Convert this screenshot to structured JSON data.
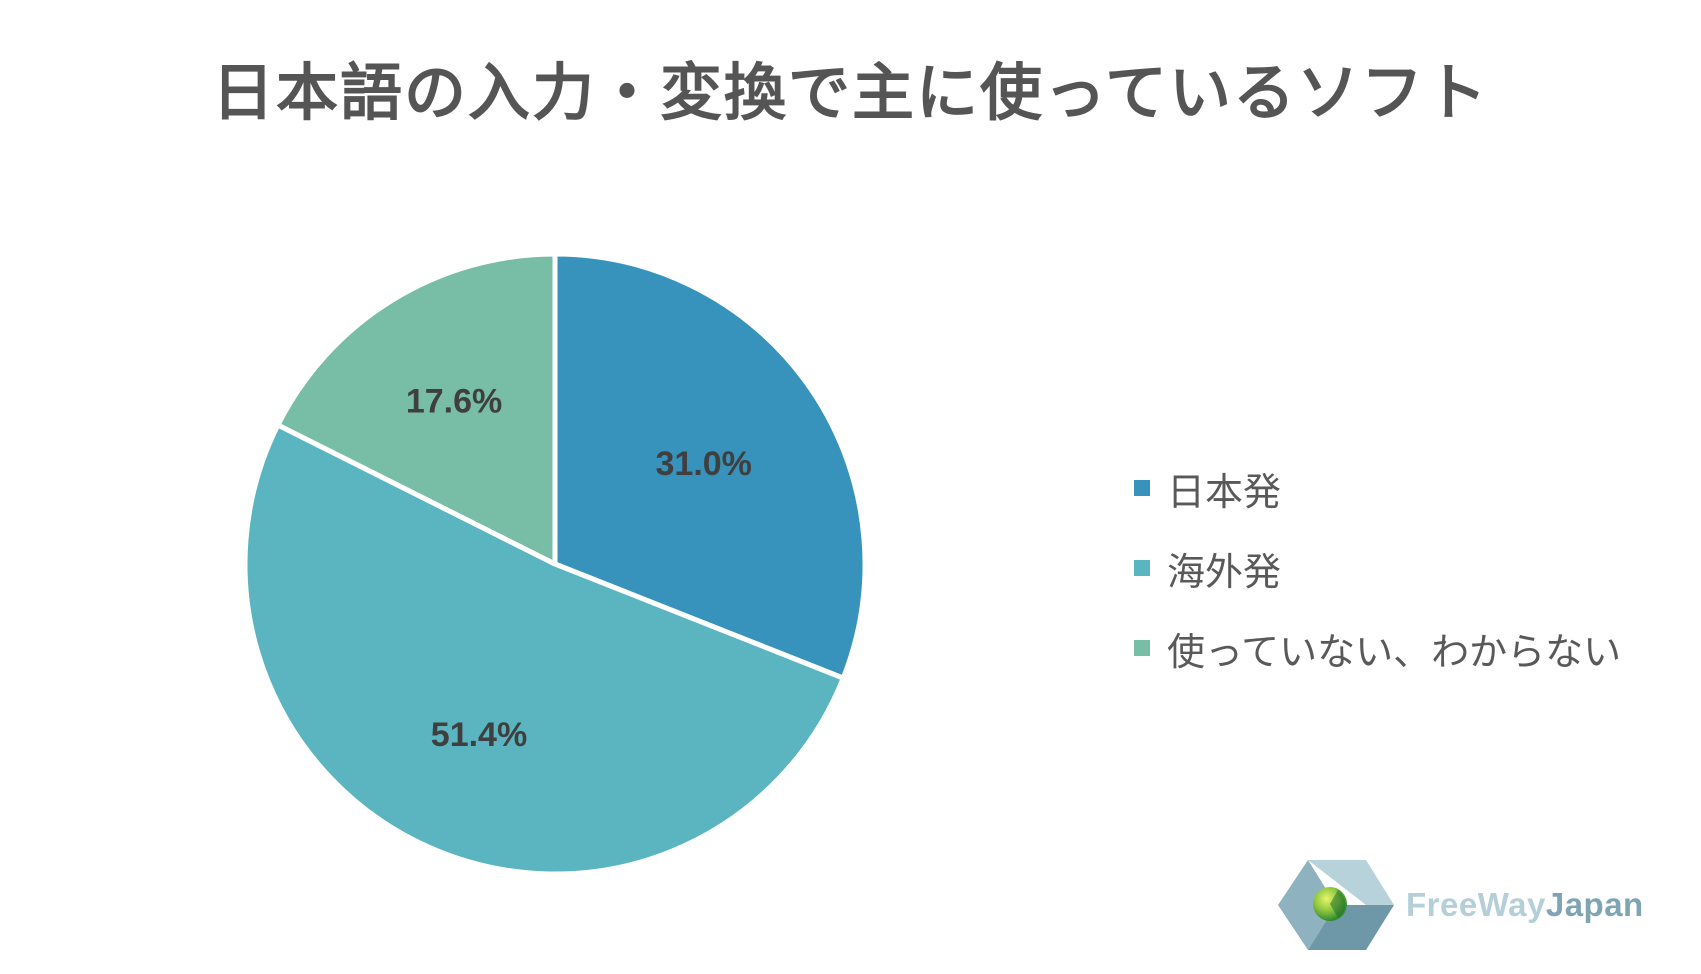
{
  "chart_data": {
    "type": "pie",
    "title": "日本語の入力・変換で主に使っているソフト",
    "slices": [
      {
        "label": "日本発",
        "value": 31.0,
        "display": "31.0%",
        "color": "#3793bb"
      },
      {
        "label": "海外発",
        "value": 51.4,
        "display": "51.4%",
        "color": "#5ab5c0"
      },
      {
        "label": "使っていない、わからない",
        "value": 17.6,
        "display": "17.6%",
        "color": "#78bda6"
      }
    ],
    "start": "12 o'clock",
    "direction": "clockwise",
    "legend_position": "right"
  },
  "logo": {
    "brand_part1": "FreeWay",
    "brand_part2": "Japan"
  },
  "colors": {
    "title": "#555555",
    "slice_border": "#ffffff"
  }
}
